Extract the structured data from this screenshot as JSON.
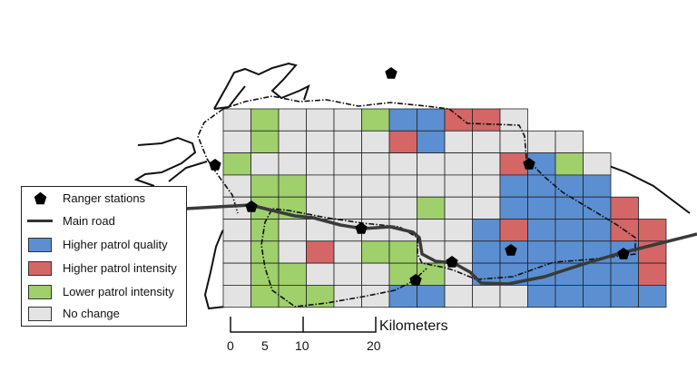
{
  "legend": {
    "ranger_stations": "Ranger stations",
    "main_road": "Main road",
    "higher_quality": "Higher patrol quality",
    "higher_intensity": "Higher patrol intensity",
    "lower_intensity": "Lower patrol intensity",
    "no_change": "No change"
  },
  "colors": {
    "higher_quality": "#5b8fd1",
    "higher_intensity": "#d46666",
    "lower_intensity": "#9fd06c",
    "no_change": "#e3e3e3",
    "road": "#3a3a3a",
    "station": "#000000"
  },
  "scale_bar": {
    "ticks": [
      "0",
      "5",
      "10",
      "20"
    ],
    "unit": "Kilometers"
  }
}
